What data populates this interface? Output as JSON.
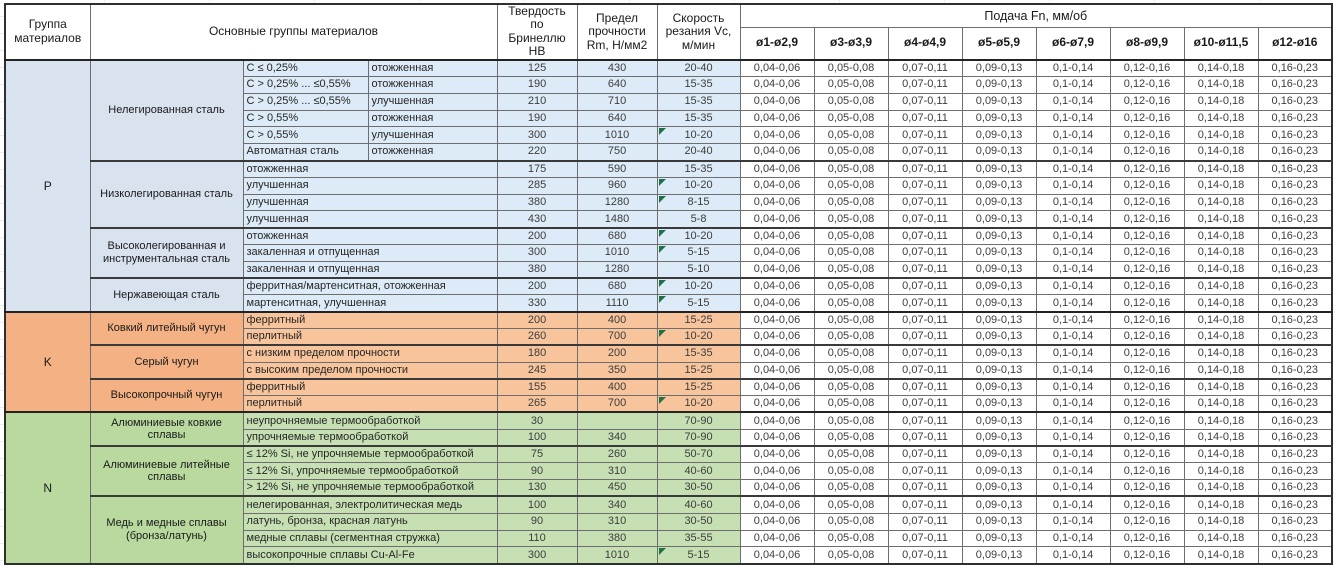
{
  "header": {
    "col_group": "Группа материалов",
    "col_main": "Основные группы материалов",
    "col_hb": "Твердость по Бринеллю НВ",
    "col_rm": "Предел прочности Rm, Н/мм2",
    "col_vc": "Скорость резания Vc, м/мин",
    "feed_title": "Подача Fn, мм/об",
    "feed_cols": [
      "ø1-ø2,9",
      "ø3-ø3,9",
      "ø4-ø4,9",
      "ø5-ø5,9",
      "ø6-ø7,9",
      "ø8-ø9,9",
      "ø10-ø11,5",
      "ø12-ø16"
    ]
  },
  "feed_values": [
    "0,04-0,06",
    "0,05-0,08",
    "0,07-0,11",
    "0,09-0,13",
    "0,1-0,14",
    "0,12-0,16",
    "0,14-0,18",
    "0,16-0,23"
  ],
  "colors": {
    "p_label": "#d8e3ef",
    "p_data": "#dcebf7",
    "k_label": "#f4b183",
    "k_data": "#f7c49c",
    "n_label": "#b9d99f",
    "n_data": "#c6e0b4",
    "flag_green": "#1e7145",
    "grid_border": "#6e6e6e"
  },
  "groups": [
    {
      "code": "P",
      "label_bg": "#d8e3ef",
      "data_bg": "#dcebf7",
      "families": [
        {
          "name": "Нелегированная сталь",
          "rows": [
            {
              "desc": [
                "C ≤ 0,25%",
                "отожженная"
              ],
              "hb": "125",
              "rm": "430",
              "vc": "20-40",
              "flag": false
            },
            {
              "desc": [
                "C > 0,25% ... ≤0,55%",
                "отожженная"
              ],
              "hb": "190",
              "rm": "640",
              "vc": "15-35",
              "flag": false
            },
            {
              "desc": [
                "C > 0,25% ... ≤0,55%",
                "улучшенная"
              ],
              "hb": "210",
              "rm": "710",
              "vc": "15-35",
              "flag": false
            },
            {
              "desc": [
                "C > 0,55%",
                "отожженная"
              ],
              "hb": "190",
              "rm": "640",
              "vc": "15-35",
              "flag": false
            },
            {
              "desc": [
                "C > 0,55%",
                "улучшенная"
              ],
              "hb": "300",
              "rm": "1010",
              "vc": "10-20",
              "flag": true
            },
            {
              "desc": [
                "Автоматная сталь",
                "отожженная"
              ],
              "hb": "220",
              "rm": "750",
              "vc": "20-40",
              "flag": false
            }
          ]
        },
        {
          "name": "Низколегированная сталь",
          "rows": [
            {
              "desc": "отожженная",
              "hb": "175",
              "rm": "590",
              "vc": "15-35",
              "flag": false
            },
            {
              "desc": "улучшенная",
              "hb": "285",
              "rm": "960",
              "vc": "10-20",
              "flag": true
            },
            {
              "desc": "улучшенная",
              "hb": "380",
              "rm": "1280",
              "vc": "8-15",
              "flag": true
            },
            {
              "desc": "улучшенная",
              "hb": "430",
              "rm": "1480",
              "vc": "5-8",
              "flag": false
            }
          ]
        },
        {
          "name": "Высоколегированная и инструментальная сталь",
          "rows": [
            {
              "desc": "отожженная",
              "hb": "200",
              "rm": "680",
              "vc": "10-20",
              "flag": true
            },
            {
              "desc": "закаленная и отпущенная",
              "hb": "300",
              "rm": "1010",
              "vc": "5-15",
              "flag": true
            },
            {
              "desc": "закаленная и отпущенная",
              "hb": "380",
              "rm": "1280",
              "vc": "5-10",
              "flag": false
            }
          ]
        },
        {
          "name": "Нержавеющая сталь",
          "rows": [
            {
              "desc": "ферритная/мартенситная, отожженная",
              "hb": "200",
              "rm": "680",
              "vc": "10-20",
              "flag": true
            },
            {
              "desc": "мартенситная, улучшенная",
              "hb": "330",
              "rm": "1110",
              "vc": "5-15",
              "flag": true
            }
          ]
        }
      ]
    },
    {
      "code": "K",
      "label_bg": "#f4b183",
      "data_bg": "#f7c49c",
      "families": [
        {
          "name": "Ковкий литейный чугун",
          "rows": [
            {
              "desc": "ферритный",
              "hb": "200",
              "rm": "400",
              "vc": "15-25",
              "flag": false
            },
            {
              "desc": "перлитный",
              "hb": "260",
              "rm": "700",
              "vc": "10-20",
              "flag": true
            }
          ]
        },
        {
          "name": "Серый чугун",
          "rows": [
            {
              "desc": "с низким пределом прочности",
              "hb": "180",
              "rm": "200",
              "vc": "15-35",
              "flag": false
            },
            {
              "desc": "с высоким пределом прочности",
              "hb": "245",
              "rm": "350",
              "vc": "15-25",
              "flag": false
            }
          ]
        },
        {
          "name": "Высокопрочный чугун",
          "rows": [
            {
              "desc": "ферритный",
              "hb": "155",
              "rm": "400",
              "vc": "15-25",
              "flag": false
            },
            {
              "desc": "перлитный",
              "hb": "265",
              "rm": "700",
              "vc": "10-20",
              "flag": true
            }
          ]
        }
      ]
    },
    {
      "code": "N",
      "label_bg": "#b9d99f",
      "data_bg": "#c6e0b4",
      "families": [
        {
          "name": "Алюминиевые ковкие сплавы",
          "rows": [
            {
              "desc": "неупрочняемые термообработкой",
              "hb": "30",
              "rm": "",
              "vc": "70-90",
              "flag": false
            },
            {
              "desc": "упрочняемые термообработкой",
              "hb": "100",
              "rm": "340",
              "vc": "70-90",
              "flag": false
            }
          ]
        },
        {
          "name": "Алюминиевые литейные сплавы",
          "rows": [
            {
              "desc": "≤ 12% Si, не упрочняемые термообработкой",
              "hb": "75",
              "rm": "260",
              "vc": "50-70",
              "flag": false
            },
            {
              "desc": "≤ 12% Si, упрочняемые термообработкой",
              "hb": "90",
              "rm": "310",
              "vc": "40-60",
              "flag": false
            },
            {
              "desc": "> 12% Si, не упрочняемые термообработкой",
              "hb": "130",
              "rm": "450",
              "vc": "30-50",
              "flag": false
            }
          ]
        },
        {
          "name": "Медь и медные сплавы (бронза/латунь)",
          "rows": [
            {
              "desc": "нелегированная, электролитическая медь",
              "hb": "100",
              "rm": "340",
              "vc": "40-60",
              "flag": false
            },
            {
              "desc": "латунь, бронза, красная латунь",
              "hb": "90",
              "rm": "310",
              "vc": "30-50",
              "flag": false
            },
            {
              "desc": "медные сплавы (сегментная стружка)",
              "hb": "110",
              "rm": "380",
              "vc": "35-55",
              "flag": false
            },
            {
              "desc": "высокопрочные сплавы Cu-Al-Fe",
              "hb": "300",
              "rm": "1010",
              "vc": "5-15",
              "flag": true
            }
          ]
        }
      ]
    }
  ]
}
